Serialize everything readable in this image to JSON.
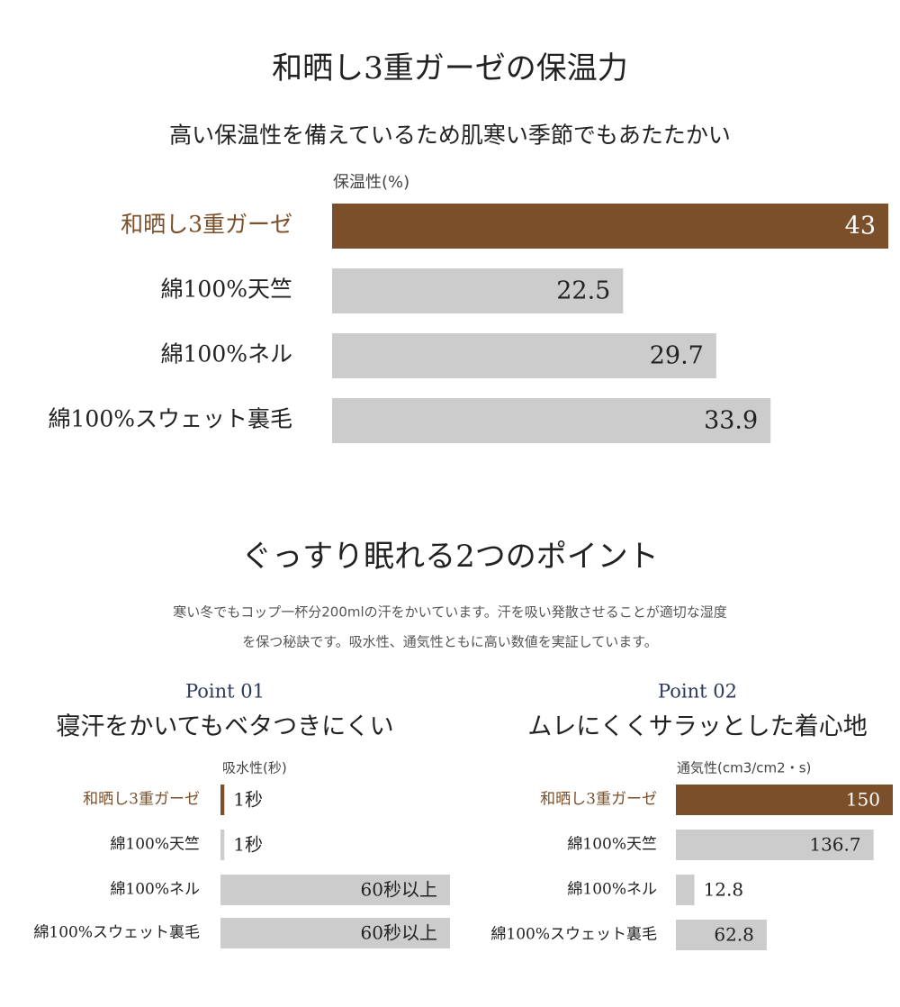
{
  "section2": {
    "title": "ぐっすり眠れる2つのポイント",
    "lines": [
      "寒い冬でもコップ一杯分200mlの汗をかいています。汗を吸い発散させることが適切な湿度",
      "を保つ秘訣です。吸水性、通気性ともに高い数値を実証しています。"
    ]
  },
  "chart_data": [
    {
      "type": "bar",
      "orientation": "horizontal",
      "title": "和晒し3重ガーゼの保温力",
      "subtitle": "高い保温性を備えているため肌寒い季節でもあたたかい",
      "xlabel": "保温性(%)",
      "categories": [
        "和晒し3重ガーゼ",
        "綿100%天竺",
        "綿100%ネル",
        "綿100%スウェット裏毛"
      ],
      "values": [
        43,
        22.5,
        29.7,
        33.9
      ],
      "colors": [
        "#7a4f2a",
        "#cccccc",
        "#cccccc",
        "#cccccc"
      ],
      "xlim": [
        0,
        43
      ]
    },
    {
      "type": "bar",
      "orientation": "horizontal",
      "point": "Point 01",
      "title": "寝汗をかいてもベタつきにくい",
      "xlabel": "吸水性(秒)",
      "categories": [
        "和晒し3重ガーゼ",
        "綿100%天竺",
        "綿100%ネル",
        "綿100%スウェット裏毛"
      ],
      "values": [
        1,
        1,
        60,
        60
      ],
      "value_labels": [
        "1秒",
        "1秒",
        "60秒以上",
        "60秒以上"
      ],
      "colors": [
        "#7a4f2a",
        "#cccccc",
        "#cccccc",
        "#cccccc"
      ],
      "xlim": [
        0,
        60
      ]
    },
    {
      "type": "bar",
      "orientation": "horizontal",
      "point": "Point 02",
      "title": "ムレにくくサラッとした着心地",
      "xlabel": "通気性(cm3/cm2・s)",
      "categories": [
        "和晒し3重ガーゼ",
        "綿100%天竺",
        "綿100%ネル",
        "綿100%スウェット裏毛"
      ],
      "values": [
        150,
        136.7,
        12.8,
        62.8
      ],
      "colors": [
        "#7a4f2a",
        "#cccccc",
        "#cccccc",
        "#cccccc"
      ],
      "xlim": [
        0,
        150
      ]
    }
  ]
}
